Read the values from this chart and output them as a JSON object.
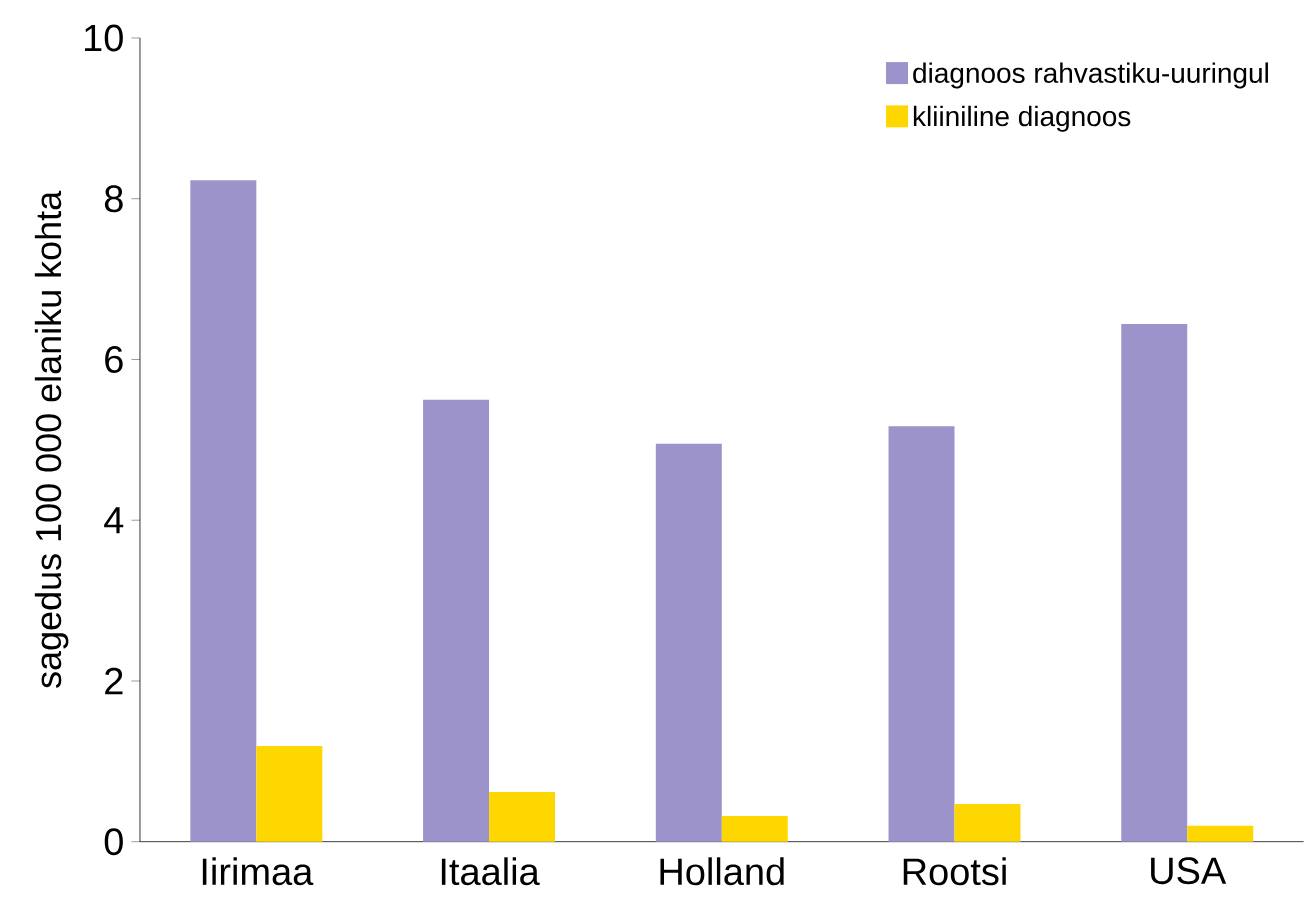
{
  "chart_data": {
    "type": "bar",
    "ylabel": "sagedus 100 000 elaniku kohta",
    "categories": [
      "Iirimaa",
      "Itaalia",
      "Holland",
      "Rootsi",
      "USA"
    ],
    "series": [
      {
        "name": "diagnoos rahvastiku-uuringul",
        "color": "#9b93c9",
        "values": [
          8.23,
          5.5,
          4.95,
          5.17,
          6.44
        ]
      },
      {
        "name": "kliiniline diagnoos",
        "color": "#ffd700",
        "values": [
          1.19,
          0.62,
          0.32,
          0.47,
          0.2
        ]
      }
    ],
    "ylim": [
      0,
      10
    ],
    "yticks": [
      0,
      2,
      4,
      6,
      8,
      10
    ],
    "grid": false,
    "legend": "top right"
  }
}
